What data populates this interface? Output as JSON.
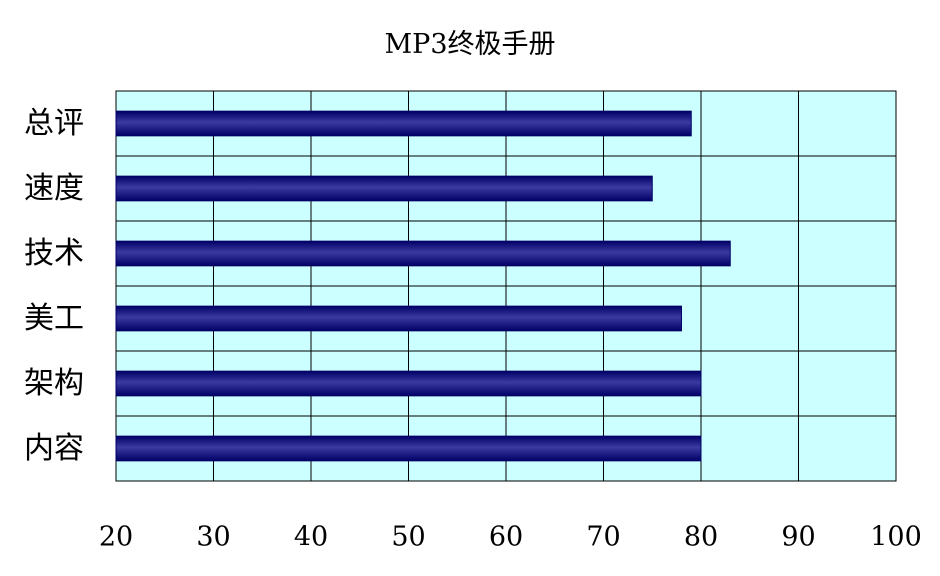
{
  "chart_data": {
    "type": "bar",
    "orientation": "horizontal",
    "title": "MP3终极手册",
    "categories": [
      "总评",
      "速度",
      "技术",
      "美工",
      "架构",
      "内容"
    ],
    "values": [
      79,
      75,
      83,
      78,
      80,
      80
    ],
    "xlim": [
      20,
      100
    ],
    "xticks": [
      "20",
      "30",
      "40",
      "50",
      "60",
      "70",
      "80",
      "90",
      "100"
    ],
    "xlabel": "",
    "ylabel": "",
    "grid": true,
    "legend": "none",
    "colors": {
      "bar": "#000066",
      "bar_highlight": "#3a3aa0",
      "plot_background": "#ccffff",
      "gridline": "#000000"
    }
  }
}
